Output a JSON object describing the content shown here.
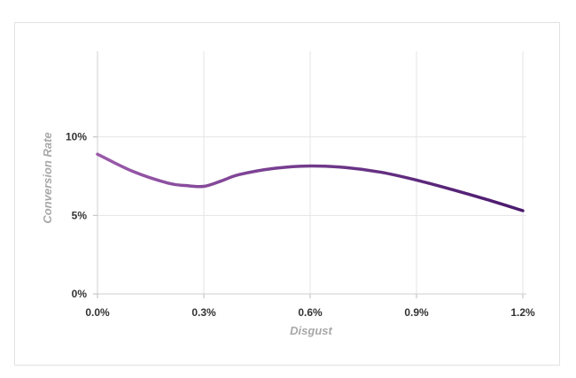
{
  "chart_data": {
    "type": "line",
    "title": "",
    "xlabel": "Disgust",
    "ylabel": "Conversion Rate",
    "x_ticks": [
      "0.0%",
      "0.3%",
      "0.6%",
      "0.9%",
      "1.2%"
    ],
    "y_ticks": [
      "0%",
      "5%",
      "10%"
    ],
    "xlim": [
      0,
      0.012
    ],
    "ylim": [
      0,
      0.15
    ],
    "grid": true,
    "legend": "none",
    "series": [
      {
        "x": [
          0.0,
          0.001,
          0.002,
          0.0025,
          0.003,
          0.0035,
          0.004,
          0.005,
          0.006,
          0.007,
          0.008,
          0.009,
          0.01,
          0.011,
          0.012
        ],
        "y": [
          0.089,
          0.078,
          0.0705,
          0.069,
          0.0685,
          0.072,
          0.076,
          0.08,
          0.0815,
          0.0805,
          0.0775,
          0.0725,
          0.0665,
          0.06,
          0.053
        ],
        "color_start": "#9a5aaa",
        "color_end": "#4a1a6e"
      }
    ]
  }
}
